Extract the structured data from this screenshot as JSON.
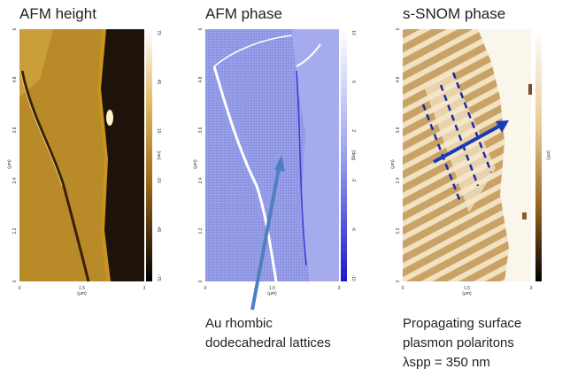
{
  "panels": [
    {
      "title": "AFM height",
      "x_ticks": [
        "0",
        "1.5",
        "3"
      ],
      "y_ticks": [
        "0",
        "1.2",
        "2.4",
        "3.6",
        "4.8",
        "6"
      ],
      "x_unit": "(µm)",
      "y_unit": "(µm)",
      "colorbar_ticks": [
        "75",
        "45",
        "15",
        "-15",
        "-45",
        "-75"
      ],
      "colorbar_unit": "(nm)"
    },
    {
      "title": "AFM phase",
      "x_ticks": [
        "0",
        "1.5",
        "3"
      ],
      "y_ticks": [
        "0",
        "1.2",
        "2.4",
        "3.6",
        "4.8",
        "6"
      ],
      "x_unit": "(µm)",
      "y_unit": "(µm)",
      "colorbar_ticks": [
        "10",
        "6",
        "2",
        "-2",
        "-6",
        "-10"
      ],
      "colorbar_unit": "(deg)"
    },
    {
      "title": "s-SNOM phase",
      "x_ticks": [
        "0",
        "1.5",
        "3"
      ],
      "y_ticks": [
        "0",
        "1.2",
        "2.4",
        "3.6",
        "4.8",
        "6"
      ],
      "x_unit": "(µm)",
      "y_unit": "(µm)",
      "colorbar_unit": "(mV)"
    }
  ],
  "annotations": [
    {
      "lines": [
        "Au rhombic",
        "dodecahedral lattices"
      ]
    },
    {
      "lines": [
        "Propagating surface",
        "plasmon polaritons",
        "λspp = 350 nm"
      ]
    }
  ]
}
